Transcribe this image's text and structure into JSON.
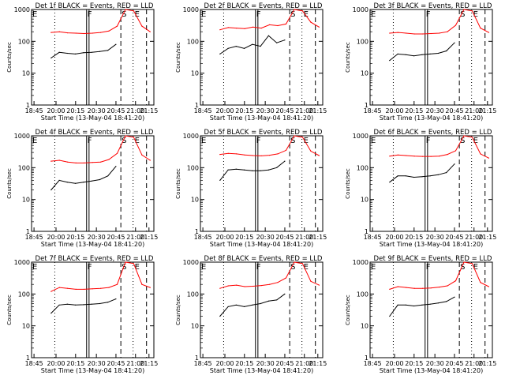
{
  "figure": {
    "xlabel": "Start Time (13-May-04 18:41:20)",
    "ylabel": "Counts/sec",
    "xticks": [
      "18:45",
      "20:00",
      "20:15",
      "20:30",
      "20:45",
      "21:00",
      "21:15"
    ],
    "xticks_compact": [
      "18:45",
      "20:00",
      "20:15",
      "20:30",
      "20:45",
      "21:00",
      "21:15"
    ],
    "yticks": [
      "1",
      "10",
      "100",
      "1000"
    ],
    "marker_labels": {
      "E1": "E",
      "F": "F",
      "S": "S",
      "E2": "E"
    },
    "colors": {
      "events": "#000000",
      "lld": "#ff0000",
      "axes": "#000000",
      "background": "#ffffff"
    }
  },
  "chart_data": [
    {
      "type": "line",
      "title": "Det 1f BLACK = Events, RED = LLD",
      "xlabel": "Start Time (13-May-04 18:41:20)",
      "ylabel": "Counts/sec",
      "ylim": [
        1,
        1000
      ],
      "yscale": "log",
      "series": [
        {
          "name": "Events",
          "color": "#000000",
          "values": [
            30,
            45,
            42,
            40,
            44,
            45,
            48,
            52,
            80
          ]
        },
        {
          "name": "LLD",
          "color": "#ff0000",
          "values": [
            190,
            200,
            185,
            180,
            175,
            180,
            190,
            210,
            300,
            1000,
            900,
            300,
            200
          ]
        }
      ]
    },
    {
      "type": "line",
      "title": "Det 2f BLACK = Events, RED = LLD",
      "xlabel": "Start Time (13-May-04 18:41:20)",
      "ylabel": "Counts/sec",
      "ylim": [
        1,
        1000
      ],
      "yscale": "log",
      "series": [
        {
          "name": "Events",
          "color": "#000000",
          "values": [
            40,
            60,
            70,
            60,
            80,
            70,
            150,
            90,
            110
          ]
        },
        {
          "name": "LLD",
          "color": "#ff0000",
          "values": [
            230,
            270,
            260,
            250,
            280,
            260,
            330,
            310,
            350,
            1000,
            900,
            400,
            280
          ]
        }
      ]
    },
    {
      "type": "line",
      "title": "Det 3f BLACK = Events, RED = LLD",
      "xlabel": "Start Time (13-May-04 18:41:20)",
      "ylabel": "Counts/sec",
      "ylim": [
        1,
        1000
      ],
      "yscale": "log",
      "series": [
        {
          "name": "Events",
          "color": "#000000",
          "values": [
            25,
            40,
            38,
            35,
            38,
            40,
            42,
            50,
            90
          ]
        },
        {
          "name": "LLD",
          "color": "#ff0000",
          "values": [
            180,
            190,
            180,
            170,
            170,
            175,
            180,
            200,
            320,
            1000,
            900,
            260,
            190
          ]
        }
      ]
    },
    {
      "type": "line",
      "title": "Det 4f BLACK = Events, RED = LLD",
      "xlabel": "Start Time (13-May-04 18:41:20)",
      "ylabel": "Counts/sec",
      "ylim": [
        1,
        1000
      ],
      "yscale": "log",
      "series": [
        {
          "name": "Events",
          "color": "#000000",
          "values": [
            20,
            40,
            35,
            32,
            35,
            38,
            42,
            55,
            110
          ]
        },
        {
          "name": "LLD",
          "color": "#ff0000",
          "values": [
            160,
            170,
            150,
            140,
            140,
            145,
            150,
            180,
            280,
            1000,
            900,
            250,
            170
          ]
        }
      ]
    },
    {
      "type": "line",
      "title": "Det 5f BLACK = Events, RED = LLD",
      "xlabel": "Start Time (13-May-04 18:41:20)",
      "ylabel": "Counts/sec",
      "ylim": [
        1,
        1000
      ],
      "yscale": "log",
      "series": [
        {
          "name": "Events",
          "color": "#000000",
          "values": [
            40,
            85,
            90,
            85,
            80,
            80,
            85,
            100,
            160
          ]
        },
        {
          "name": "LLD",
          "color": "#ff0000",
          "values": [
            260,
            280,
            270,
            250,
            240,
            235,
            245,
            270,
            350,
            1000,
            900,
            330,
            240
          ]
        }
      ]
    },
    {
      "type": "line",
      "title": "Det 6f BLACK = Events, RED = LLD",
      "xlabel": "Start Time (13-May-04 18:41:20)",
      "ylabel": "Counts/sec",
      "ylim": [
        1,
        1000
      ],
      "yscale": "log",
      "series": [
        {
          "name": "Events",
          "color": "#000000",
          "values": [
            35,
            55,
            55,
            50,
            52,
            55,
            60,
            70,
            130
          ]
        },
        {
          "name": "LLD",
          "color": "#ff0000",
          "values": [
            230,
            250,
            240,
            230,
            225,
            225,
            230,
            260,
            340,
            1000,
            900,
            270,
            200
          ]
        }
      ]
    },
    {
      "type": "line",
      "title": "Det 7f BLACK = Events, RED = LLD",
      "xlabel": "Start Time (13-May-04 18:41:20)",
      "ylabel": "Counts/sec",
      "ylim": [
        1,
        1000
      ],
      "yscale": "log",
      "series": [
        {
          "name": "Events",
          "color": "#000000",
          "values": [
            25,
            45,
            48,
            45,
            46,
            48,
            50,
            55,
            70
          ]
        },
        {
          "name": "LLD",
          "color": "#ff0000",
          "values": [
            120,
            160,
            150,
            140,
            140,
            145,
            150,
            160,
            200,
            1000,
            900,
            200,
            160
          ]
        }
      ]
    },
    {
      "type": "line",
      "title": "Det 8f BLACK = Events, RED = LLD",
      "xlabel": "Start Time (13-May-04 18:41:20)",
      "ylabel": "Counts/sec",
      "ylim": [
        1,
        1000
      ],
      "yscale": "log",
      "series": [
        {
          "name": "Events",
          "color": "#000000",
          "values": [
            20,
            40,
            45,
            40,
            45,
            50,
            60,
            65,
            100
          ]
        },
        {
          "name": "LLD",
          "color": "#ff0000",
          "values": [
            150,
            180,
            190,
            170,
            175,
            185,
            200,
            230,
            320,
            1000,
            900,
            250,
            190
          ]
        }
      ]
    },
    {
      "type": "line",
      "title": "Det 9f BLACK = Events, RED = LLD",
      "xlabel": "Start Time (13-May-04 18:41:20)",
      "ylabel": "Counts/sec",
      "ylim": [
        1,
        1000
      ],
      "yscale": "log",
      "series": [
        {
          "name": "Events",
          "color": "#000000",
          "values": [
            20,
            45,
            45,
            42,
            45,
            48,
            52,
            58,
            80
          ]
        },
        {
          "name": "LLD",
          "color": "#ff0000",
          "values": [
            140,
            170,
            160,
            150,
            150,
            155,
            165,
            180,
            260,
            1000,
            900,
            230,
            170
          ]
        }
      ]
    }
  ]
}
